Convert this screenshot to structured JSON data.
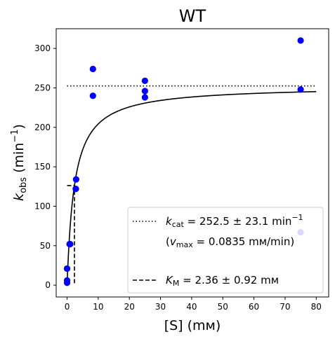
{
  "chart_data": {
    "type": "scatter",
    "title": "WT",
    "xlabel": {
      "main": "[S] (",
      "unit": "mм",
      "close": ")"
    },
    "ylabel": {
      "k": "k",
      "sub": "obs",
      "unit": "(min",
      "sup": "−1",
      "close": ")"
    },
    "xlim": [
      -3.5,
      84
    ],
    "ylim": [
      -15,
      325
    ],
    "xticks": [
      0,
      10,
      20,
      30,
      40,
      50,
      60,
      70,
      80
    ],
    "yticks": [
      0,
      50,
      100,
      150,
      200,
      250,
      300
    ],
    "grid": false,
    "legend_position": "lower-right",
    "colors": {
      "points": "#0000ff",
      "lines": "#000000"
    },
    "series": [
      {
        "type": "scatter",
        "x": [
          0,
          0,
          0,
          0,
          0.8,
          1.0,
          2.8,
          2.8,
          2.9,
          8.3,
          8.3,
          25,
          25,
          25,
          75,
          75,
          75
        ],
        "y": [
          3,
          6,
          21,
          21,
          52,
          52,
          122,
          122,
          134,
          274,
          240,
          259,
          246,
          238,
          310,
          248,
          67
        ]
      },
      {
        "type": "line",
        "style": "solid",
        "model": "michaelis-menten",
        "kcat": 252.5,
        "km": 2.36,
        "x_range": [
          0,
          80
        ]
      },
      {
        "type": "line",
        "style": "dotted",
        "x": [
          0,
          80
        ],
        "y": [
          252.5,
          252.5
        ]
      },
      {
        "type": "line",
        "style": "dashed",
        "x": [
          0,
          2.36,
          2.36
        ],
        "y": [
          126.25,
          126.25,
          0
        ]
      }
    ],
    "legend": [
      {
        "style": "dotted",
        "k": "k",
        "sub": "cat",
        "text": " = 252.5 ± 23.1 min",
        "sup": "−1"
      },
      {
        "style": "none",
        "open": "(",
        "v": "v",
        "sub": "max",
        "text": " = 0.0835 mм/min)"
      },
      {
        "style": "dashed",
        "k": "K",
        "sub": "M",
        "text": " = 2.36 ± 0.92 mм"
      }
    ]
  }
}
